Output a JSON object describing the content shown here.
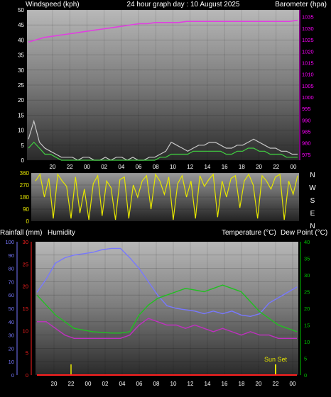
{
  "header": {
    "left_label": "Windspeed (kph)",
    "title": "24 hour graph day : 10 August 2025",
    "right_label": "Barometer (hpa)"
  },
  "mid_header": {
    "left_labels": [
      "Rainfall (mm)",
      "Humidity"
    ],
    "right_labels": [
      "Temperature (°C)",
      "Dew Point (°C)"
    ]
  },
  "annotation": {
    "label": "Sun Set",
    "x": "22"
  },
  "colors": {
    "wind": "#c8c8c8",
    "gust": "#40d040",
    "barometer": "#e040e0",
    "direction": "#e6e600",
    "humidity": "#7878ff",
    "temperature": "#20c020",
    "dewpoint": "#c030c0",
    "rain": "#ff2020",
    "axis_green": "#00c000",
    "axis_magenta": "#ff00ff"
  },
  "chart_data": [
    {
      "type": "line",
      "name": "wind-barometer",
      "x_ticks": [
        "20",
        "22",
        "00",
        "02",
        "04",
        "06",
        "08",
        "10",
        "12",
        "14",
        "16",
        "18",
        "20",
        "22",
        "00"
      ],
      "y_left": {
        "ticks": [
          0,
          5,
          10,
          15,
          20,
          25,
          30,
          35,
          40,
          45,
          50
        ],
        "range": [
          0,
          50
        ]
      },
      "y_right": {
        "ticks": [
          975,
          980,
          985,
          990,
          995,
          1000,
          1005,
          1010,
          1015,
          1020,
          1025,
          1030,
          1035
        ],
        "range": [
          972.5,
          1038
        ]
      },
      "series": [
        {
          "key": "windspeed",
          "axis": "left",
          "values": [
            7,
            13,
            6,
            4,
            3,
            2,
            1,
            1,
            1,
            0,
            1,
            1,
            0,
            0,
            1,
            0,
            1,
            1,
            0,
            1,
            0,
            0,
            1,
            1,
            2,
            3,
            6,
            5,
            4,
            3,
            4,
            5,
            5,
            6,
            6,
            5,
            4,
            4,
            5,
            5,
            6,
            7,
            6,
            5,
            4,
            4,
            3,
            3,
            2,
            2
          ]
        },
        {
          "key": "gust",
          "axis": "left",
          "values": [
            4,
            6,
            4,
            2,
            2,
            1,
            0,
            0,
            0,
            0,
            0,
            0,
            0,
            0,
            0,
            0,
            0,
            0,
            0,
            0,
            0,
            0,
            0,
            0,
            1,
            1,
            2,
            2,
            2,
            2,
            3,
            3,
            3,
            3,
            3,
            3,
            2,
            2,
            3,
            3,
            4,
            4,
            3,
            3,
            2,
            2,
            2,
            1,
            1,
            1
          ]
        },
        {
          "key": "barometer",
          "axis": "right",
          "values": [
            1024,
            1025,
            1026,
            1026.5,
            1027,
            1027.5,
            1028,
            1028.5,
            1029,
            1029.5,
            1030,
            1030.5,
            1031,
            1031.5,
            1032,
            1032,
            1032.5,
            1032.5,
            1032.5,
            1032.5,
            1033,
            1033,
            1033,
            1033,
            1033,
            1033,
            1033,
            1033,
            1033,
            1033,
            1033,
            1033,
            1033,
            1033,
            1033.5
          ]
        }
      ]
    },
    {
      "type": "line",
      "name": "wind-direction",
      "y_ticks": [
        0,
        90,
        180,
        270,
        360
      ],
      "y_range": [
        0,
        360
      ],
      "compass": [
        "N",
        "W",
        "S",
        "E",
        "N"
      ],
      "series": [
        {
          "key": "direction",
          "values": [
            300,
            350,
            180,
            320,
            20,
            350,
            300,
            260,
            20,
            330,
            60,
            240,
            10,
            280,
            340,
            40,
            300,
            250,
            10,
            310,
            330,
            20,
            270,
            180,
            300,
            340,
            90,
            350,
            300,
            200,
            330,
            10,
            280,
            340,
            180,
            300,
            20,
            340,
            260,
            310,
            350,
            30,
            300,
            180,
            320,
            340,
            100,
            300,
            350,
            270,
            20,
            340,
            300,
            240,
            330,
            350,
            10,
            300,
            200,
            340
          ]
        }
      ]
    },
    {
      "type": "line",
      "name": "humidity-temperature",
      "x_ticks": [
        "20",
        "22",
        "00",
        "02",
        "04",
        "06",
        "08",
        "10",
        "12",
        "14",
        "16",
        "18",
        "20",
        "22",
        "00"
      ],
      "y_left_humidity": {
        "ticks": [
          0,
          10,
          20,
          30,
          40,
          50,
          60,
          70,
          80,
          90,
          100
        ],
        "range": [
          0,
          100
        ]
      },
      "y_left_rain": {
        "ticks": [
          0,
          5,
          10,
          15,
          20,
          25,
          30
        ],
        "range": [
          0,
          30
        ]
      },
      "y_right": {
        "ticks": [
          0,
          5,
          10,
          15,
          20,
          25,
          30,
          35,
          40
        ],
        "range": [
          0,
          40
        ]
      },
      "series": [
        {
          "key": "humidity",
          "axis": "left",
          "values": [
            62,
            72,
            84,
            88,
            90,
            91,
            92,
            94,
            95,
            95,
            88,
            80,
            70,
            60,
            52,
            50,
            49,
            48,
            46,
            48,
            46,
            48,
            45,
            44,
            46,
            54,
            58,
            62,
            66
          ]
        },
        {
          "key": "temperature",
          "axis": "right",
          "values": [
            24,
            21,
            18,
            16,
            14,
            13.5,
            13,
            12.8,
            12.6,
            12.6,
            13,
            18,
            21,
            23,
            24,
            25,
            26,
            25.5,
            25,
            26,
            27,
            26,
            25,
            22,
            19,
            17,
            15,
            14,
            13
          ]
        },
        {
          "key": "dewpoint",
          "axis": "right",
          "values": [
            16,
            16,
            14,
            12,
            11,
            11,
            11,
            11,
            11,
            11,
            12,
            15,
            17,
            16,
            15,
            15,
            14,
            15,
            14,
            13,
            14,
            13,
            12,
            13,
            12,
            12,
            11,
            11,
            11
          ]
        },
        {
          "key": "rain",
          "axis": "left_rain",
          "values": [
            0,
            0,
            0,
            0,
            0,
            0,
            0,
            0,
            0,
            0,
            0,
            0,
            0,
            0,
            0,
            0,
            0,
            0,
            0,
            0,
            0,
            0,
            0,
            0,
            0,
            0,
            0,
            0,
            0
          ]
        }
      ]
    }
  ]
}
